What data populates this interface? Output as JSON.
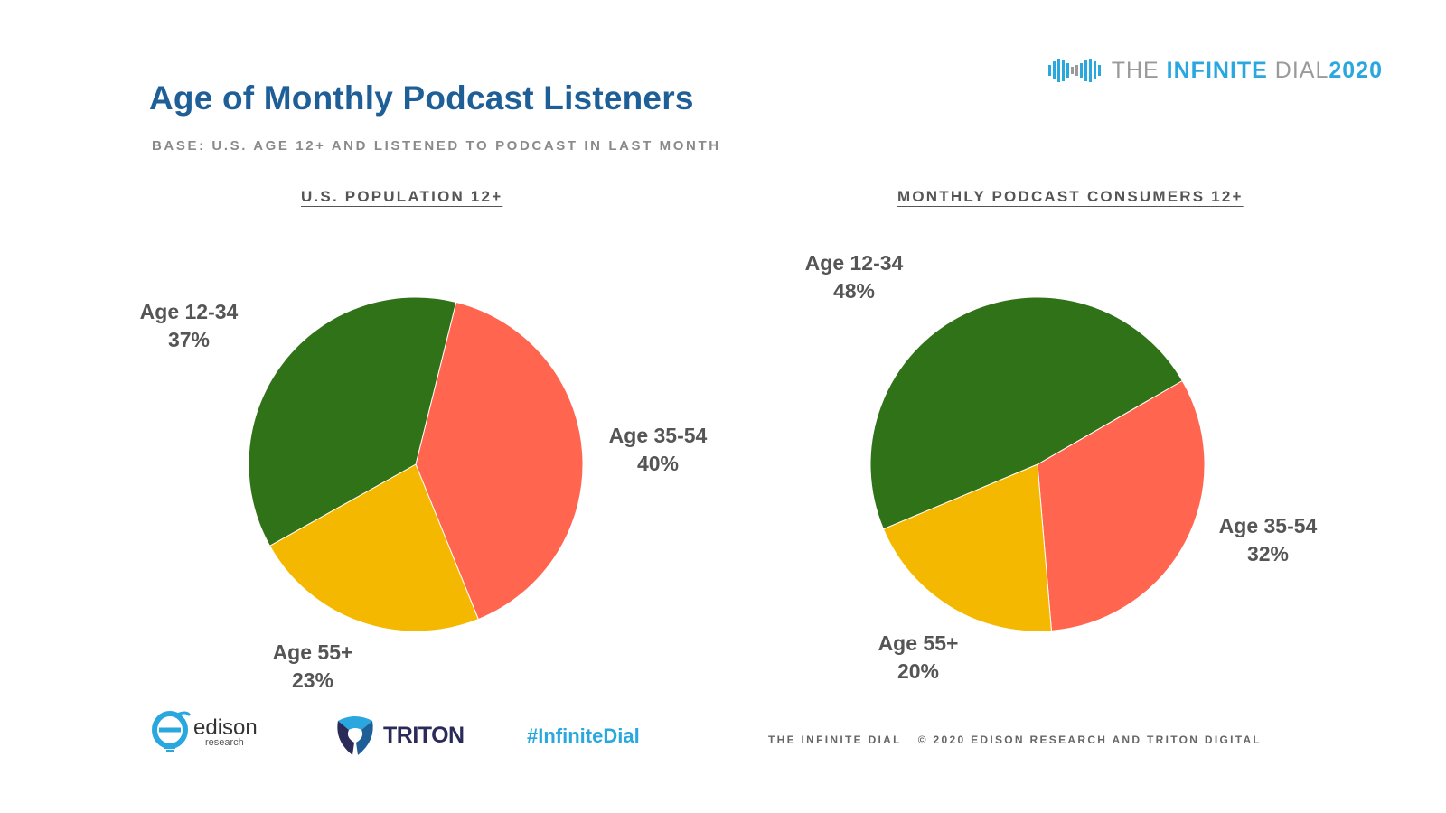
{
  "title": "Age of Monthly Podcast Listeners",
  "subtitle": "BASE: U.S. AGE 12+ AND LISTENED TO PODCAST IN LAST MONTH",
  "brand": {
    "the": "THE ",
    "infinite": "INFINITE",
    "dial": " DIAL",
    "year": "2020"
  },
  "colors": {
    "age_12_34": "#307218",
    "age_35_54": "#ff654f",
    "age_55_plus": "#f5b800",
    "title": "#1f5f97",
    "accent": "#2aa7df"
  },
  "chart_data": [
    {
      "type": "pie",
      "title": "U.S. POPULATION 12+",
      "categories": [
        "Age 12-34",
        "Age 35-54",
        "Age 55+"
      ],
      "values": [
        37,
        40,
        23
      ],
      "value_labels": [
        "37%",
        "40%",
        "23%"
      ]
    },
    {
      "type": "pie",
      "title": "MONTHLY PODCAST CONSUMERS 12+",
      "categories": [
        "Age 12-34",
        "Age 35-54",
        "Age 55+"
      ],
      "values": [
        48,
        32,
        20
      ],
      "value_labels": [
        "48%",
        "32%",
        "20%"
      ]
    }
  ],
  "footer": {
    "edison": "edison",
    "edison_sub": "research",
    "triton": "TRITON",
    "hashtag": "#InfiniteDial",
    "left": "THE INFINITE DIAL",
    "right": "© 2020 EDISON RESEARCH AND TRITON DIGITAL"
  }
}
